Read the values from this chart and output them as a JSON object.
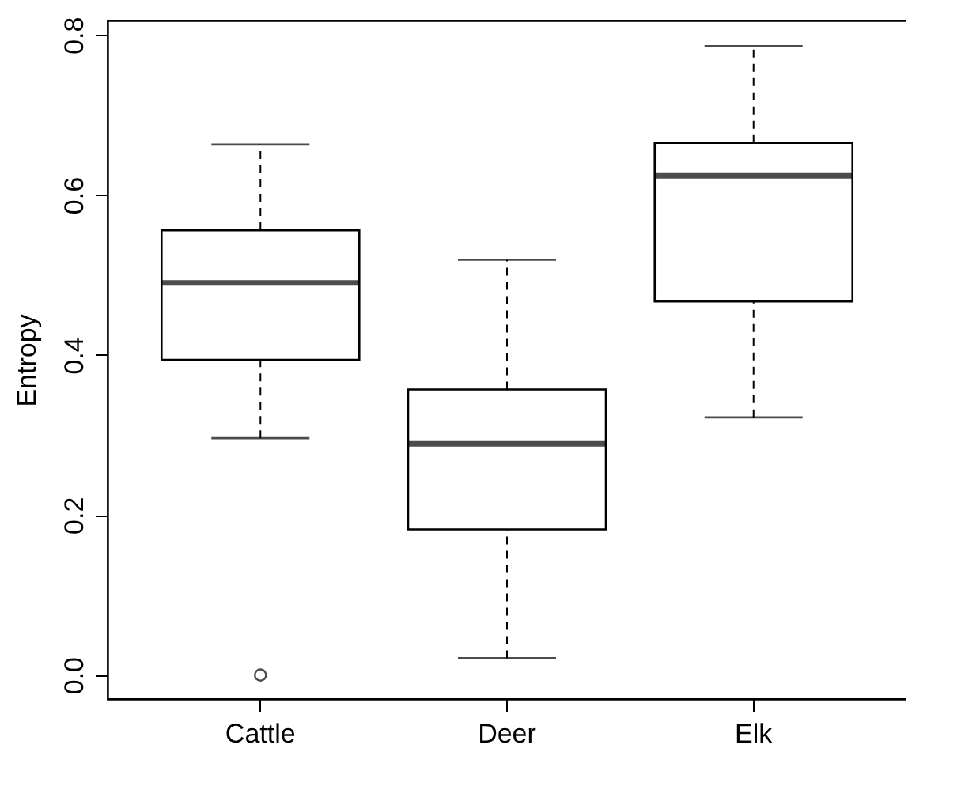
{
  "chart_data": {
    "type": "box",
    "ylabel": "Entropy",
    "categories": [
      "Cattle",
      "Deer",
      "Elk"
    ],
    "boxes": [
      {
        "low": 0.296,
        "q1": 0.394,
        "median": 0.49,
        "q3": 0.556,
        "high": 0.663,
        "outliers": [
          0.0
        ]
      },
      {
        "low": 0.021,
        "q1": 0.182,
        "median": 0.289,
        "q3": 0.357,
        "high": 0.519
      },
      {
        "low": 0.322,
        "q1": 0.467,
        "median": 0.624,
        "q3": 0.665,
        "high": 0.786
      }
    ],
    "ylim": [
      -0.03,
      0.818
    ],
    "yticks": [
      {
        "value": 0,
        "label": "0.0"
      },
      0.2,
      0.4,
      0.6,
      0.8
    ],
    "grid": false
  }
}
